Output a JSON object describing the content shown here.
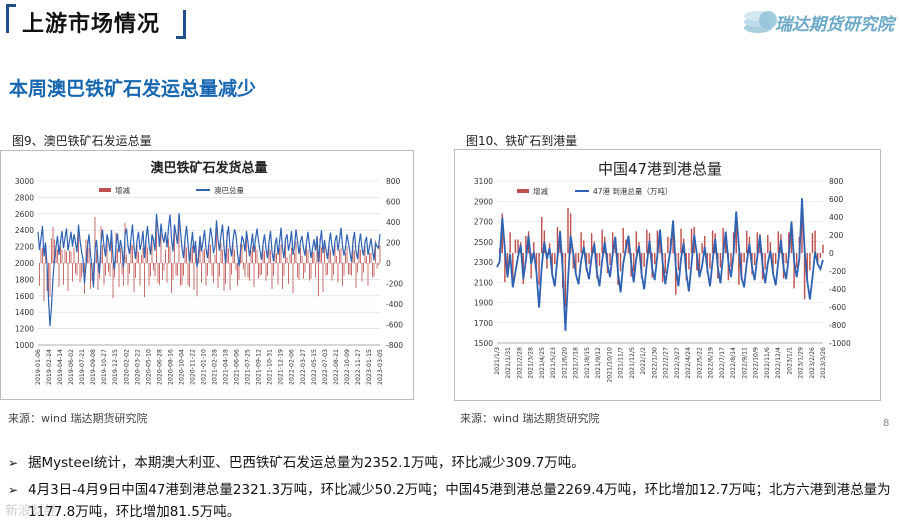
{
  "header": {
    "title": "上游市场情况",
    "logo_text": "瑞达期货研究院"
  },
  "section_title": "本周澳巴铁矿石发运总量减少",
  "figures": [
    {
      "caption": "图9、澳巴铁矿石发运总量",
      "source": "来源：wind   瑞达期货研究院"
    },
    {
      "caption": "图10、铁矿石到港量",
      "source": "来源：wind   瑞达期货研究院"
    }
  ],
  "bullets": [
    "据Mysteel统计，本期澳大利亚、巴西铁矿石发运总量为2352.1万吨，环比减少309.7万吨。",
    "4月3日-4月9日中国47港到港总量2321.3万吨，环比减少50.2万吨；中国45港到港总量2269.4万吨，环比增加12.7万吨；北方六港到港总量为1177.8万吨，环比增加81.5万吨。"
  ],
  "page_number": "8",
  "watermark": "新浪财经",
  "chart_data": [
    {
      "type": "line",
      "title": "澳巴铁矿石发货总量",
      "legend": [
        "增减",
        "澳巴总量"
      ],
      "legend_placement": "top-center",
      "series_colors": {
        "增减": "#c0504d",
        "澳巴总量": "#2e62b3"
      },
      "y_left": {
        "range": [
          1000,
          3000
        ],
        "ticks": [
          "3000",
          "2800",
          "2600",
          "2400",
          "2200",
          "2000",
          "1800",
          "1600",
          "1400",
          "1200",
          "1000"
        ]
      },
      "y_right": {
        "range": [
          -800,
          800
        ],
        "ticks": [
          "800",
          "600",
          "400",
          "200",
          "0",
          "-200",
          "-400",
          "-600",
          "-800"
        ]
      },
      "x_ticks": [
        "2019-01-06",
        "2019-02-24",
        "2019-04-14",
        "2019-06-02",
        "2019-07-21",
        "2019-09-08",
        "2019-10-27",
        "2019-12-15",
        "2020-02-02",
        "2020-03-22",
        "2020-05-10",
        "2020-06-28",
        "2020-08-16",
        "2020-10-04",
        "2020-11-22",
        "2021-01-10",
        "2021-02-28",
        "2021-04-18",
        "2021-06-06",
        "2021-07-25",
        "2021-09-12",
        "2021-10-31",
        "2021-12-19",
        "2022-02-06",
        "2022-03-27",
        "2022-05-15",
        "2022-07-03",
        "2022-08-21",
        "2022-10-09",
        "2022-11-27",
        "2023-01-15",
        "2023-03-05"
      ],
      "series": [
        {
          "name": "澳巴总量",
          "axis": "left",
          "values": [
            2380,
            2160,
            2300,
            2450,
            2080,
            2250,
            1980,
            1560,
            1230,
            1470,
            1820,
            2050,
            2200,
            2330,
            2100,
            2260,
            2390,
            2180,
            2310,
            2420,
            2150,
            2270,
            2380,
            2200,
            2350,
            2250,
            2130,
            2470,
            2280,
            2140,
            2050,
            1750,
            1980,
            2200,
            2350,
            2100,
            1930,
            1700,
            2150,
            2280,
            2020,
            1870,
            2230,
            2410,
            2200,
            2080,
            2350,
            2270,
            2140,
            2400,
            2060,
            1920,
            2220,
            2360,
            2130,
            2280,
            2170,
            1950,
            2340,
            2420,
            2210,
            2110,
            2300,
            2470,
            2190,
            2050,
            2270,
            2380,
            2160,
            2240,
            2390,
            2060,
            2300,
            2450,
            2230,
            2100,
            2350,
            2280,
            2150,
            2600,
            2410,
            2200,
            2480,
            2320,
            2250,
            2380,
            2190,
            2430,
            2590,
            2300,
            2140,
            2470,
            2350,
            2230,
            2610,
            2390,
            2180,
            2060,
            2300,
            2450,
            2240,
            2010,
            2210,
            2380,
            2120,
            2270,
            1950,
            2080,
            2330,
            2140,
            2260,
            2400,
            2180,
            2060,
            2250,
            2430,
            2310,
            2120,
            2200,
            2520,
            2280,
            2150,
            2340,
            2470,
            2200,
            2000,
            2310,
            2450,
            2190,
            2080,
            2280,
            2410,
            2340,
            2120,
            1960,
            2150,
            2330,
            2270,
            2140,
            2390,
            2250,
            2080,
            2200,
            2360,
            2130,
            2290,
            2420,
            2270,
            2150,
            2040,
            2230,
            2350,
            2180,
            2060,
            2260,
            2390,
            2140,
            2020,
            2220,
            2310,
            2100,
            2250,
            2430,
            2180,
            2060,
            2290,
            2350,
            2150,
            2240,
            2390,
            2100,
            2200,
            2410,
            2270,
            2110,
            2260,
            2330,
            2180,
            2090,
            2250,
            2380,
            2210,
            2060,
            2180,
            2290,
            2150,
            2330,
            2010,
            2250,
            2400,
            2120,
            2280,
            2160,
            2050,
            2240,
            2370,
            2200,
            2090,
            2270,
            2340,
            2150,
            2280,
            2430,
            2210,
            2090,
            2190,
            2350,
            2240,
            2130,
            2010,
            2260,
            2380,
            2140,
            2050,
            2230,
            2360,
            2180,
            2090,
            2250,
            2320,
            2100,
            2200,
            2300,
            2160,
            2030,
            2250,
            2200,
            2180,
            2352
          ]
        }
      ]
    },
    {
      "type": "line",
      "title": "中国47港到港总量",
      "legend": [
        "增减",
        "47港 到港总量（万吨）"
      ],
      "legend_placement": "top-center",
      "series_colors": {
        "增减": "#c0504d",
        "47港 到港总量（万吨）": "#2e62b3"
      },
      "y_left": {
        "range": [
          1500,
          3100
        ],
        "ticks": [
          "3100",
          "2900",
          "2700",
          "2500",
          "2300",
          "2100",
          "1900",
          "1700",
          "1500"
        ]
      },
      "y_right": {
        "range": [
          -1000,
          800
        ],
        "ticks": [
          "800",
          "600",
          "400",
          "200",
          "0",
          "-200",
          "-400",
          "-600",
          "-800",
          "-1000"
        ]
      },
      "x_ticks": [
        "2021/1/3",
        "2021/1/31",
        "2021/2/28",
        "2021/3/28",
        "2021/4/25",
        "2021/5/23",
        "2021/6/20",
        "2021/7/18",
        "2021/8/15",
        "2021/9/12",
        "2021/10/10",
        "2021/11/7",
        "2021/12/5",
        "2022/1/2",
        "2022/1/30",
        "2022/2/27",
        "2022/3/27",
        "2022/4/24",
        "2022/5/22",
        "2022/6/19",
        "2022/7/17",
        "2022/8/14",
        "2022/9/11",
        "2022/10/9",
        "2022/11/6",
        "2022/12/4",
        "2023/1/1",
        "2023/1/29",
        "2023/2/26",
        "2023/3/26"
      ],
      "series": [
        {
          "name": "47港 到港总量（万吨）",
          "axis": "left",
          "values": [
            2250,
            2300,
            2740,
            2420,
            2150,
            2380,
            2050,
            2200,
            2350,
            2470,
            2130,
            2320,
            2560,
            2280,
            2400,
            2200,
            1850,
            2250,
            2500,
            2330,
            2440,
            2180,
            2060,
            2350,
            2600,
            2220,
            1620,
            2120,
            2560,
            2390,
            2180,
            2080,
            2310,
            2450,
            2250,
            2130,
            2350,
            2480,
            2200,
            2060,
            2320,
            2500,
            2280,
            2150,
            2380,
            2550,
            2200,
            2000,
            2280,
            2430,
            2560,
            2300,
            2100,
            2340,
            2460,
            2180,
            2030,
            2290,
            2510,
            2240,
            2120,
            2370,
            2620,
            2300,
            2080,
            2260,
            2420,
            2710,
            2250,
            2060,
            2330,
            2490,
            2190,
            2010,
            2280,
            2570,
            2380,
            2150,
            2260,
            2450,
            2230,
            2060,
            2310,
            2530,
            2250,
            2090,
            2370,
            2600,
            2300,
            2150,
            2380,
            2800,
            2450,
            2150,
            2050,
            2300,
            2480,
            2250,
            2120,
            2350,
            2560,
            2270,
            2090,
            2290,
            2410,
            2190,
            2070,
            2310,
            2520,
            2240,
            2130,
            2360,
            2700,
            2310,
            2150,
            2330,
            2930,
            2420,
            2120,
            1930,
            2150,
            2400,
            2280,
            2230,
            2321
          ]
        }
      ]
    }
  ]
}
